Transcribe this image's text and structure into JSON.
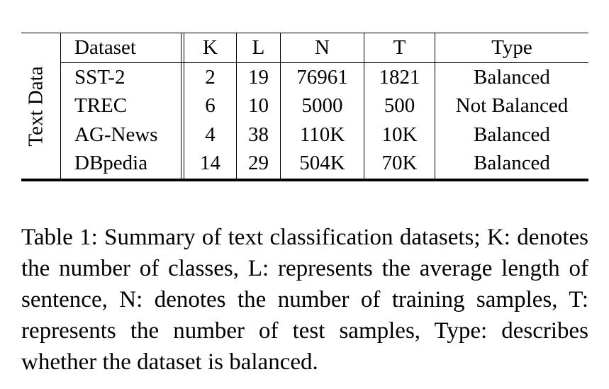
{
  "table": {
    "row_group_label": "Text Data",
    "headers": [
      "Dataset",
      "K",
      "L",
      "N",
      "T",
      "Type"
    ],
    "rows": [
      [
        "SST-2",
        "2",
        "19",
        "76961",
        "1821",
        "Balanced"
      ],
      [
        "TREC",
        "6",
        "10",
        "5000",
        "500",
        "Not Balanced"
      ],
      [
        "AG-News",
        "4",
        "38",
        "110K",
        "10K",
        "Balanced"
      ],
      [
        "DBpedia",
        "14",
        "29",
        "504K",
        "70K",
        "Balanced"
      ]
    ]
  },
  "caption": "Table 1: Summary of text classification datasets; K: denotes the number of classes, L: represents the average length of sentence, N: denotes the number of training samples, T: represents the number of test samples, Type: describes whether the dataset is balanced."
}
